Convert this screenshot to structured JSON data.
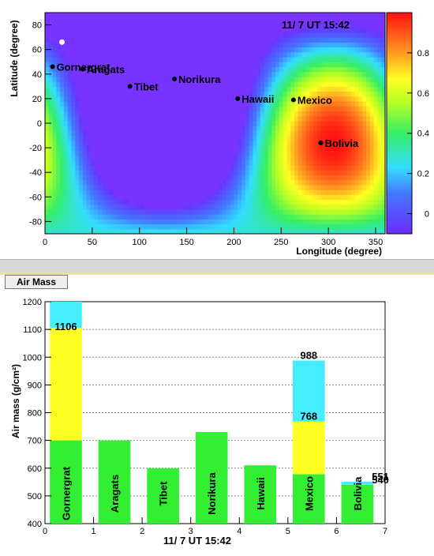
{
  "tab_label": "Air Mass",
  "chart_data": [
    {
      "type": "heatmap",
      "timestamp": "11/ 7  UT 15:42",
      "xlabel": "Longitude (degree)",
      "ylabel": "Latitude (degree)",
      "xlim": [
        0,
        360
      ],
      "ylim": [
        -90,
        90
      ],
      "x_ticks": [
        0,
        50,
        100,
        150,
        200,
        250,
        300,
        350
      ],
      "y_ticks": [
        -80,
        -60,
        -40,
        -20,
        0,
        20,
        40,
        60,
        80
      ],
      "colorbar_ticks": [
        0,
        0.2,
        0.4,
        0.6,
        0.8
      ],
      "colorbar_range": [
        -0.1,
        1.0
      ],
      "sun_marker": {
        "lon": 18,
        "lat": 66
      },
      "sites": [
        {
          "name": "Gornergrat",
          "lon": 8,
          "lat": 46
        },
        {
          "name": "Aragats",
          "lon": 40,
          "lat": 44
        },
        {
          "name": "Tibet",
          "lon": 90,
          "lat": 30
        },
        {
          "name": "Norikura",
          "lon": 137,
          "lat": 36
        },
        {
          "name": "Hawaii",
          "lon": 204,
          "lat": 20
        },
        {
          "name": "Mexico",
          "lon": 263,
          "lat": 19
        },
        {
          "name": "Bolivia",
          "lon": 292,
          "lat": -16
        }
      ]
    },
    {
      "type": "bar",
      "xlabel": "11/ 7  UT 15:42",
      "ylabel": "Air mass (g/cm²)",
      "ylim": [
        400,
        1200
      ],
      "xlim": [
        0,
        7
      ],
      "x_ticks": [
        0,
        1,
        2,
        3,
        4,
        5,
        6,
        7
      ],
      "y_ticks": [
        400,
        500,
        600,
        700,
        800,
        900,
        1000,
        1100,
        1200
      ],
      "bars": [
        {
          "name": "Gornergrat",
          "base": 700,
          "yellow_top": 1106,
          "cyan_top": 1200,
          "label": "1106"
        },
        {
          "name": "Aragats",
          "base": 700
        },
        {
          "name": "Tibet",
          "base": 600
        },
        {
          "name": "Norikura",
          "base": 730
        },
        {
          "name": "Hawaii",
          "base": 610
        },
        {
          "name": "Mexico",
          "base": 578,
          "yellow_top": 768,
          "cyan_top": 988,
          "label": "988",
          "label2": "768"
        },
        {
          "name": "Bolivia",
          "base": 540,
          "cyan_top": 551,
          "label": "551",
          "label2": "540"
        }
      ]
    }
  ],
  "colors": {
    "green": "#33ee33",
    "yellow": "#ffff22",
    "cyan": "#44eeff",
    "background_map": "#7733ff"
  }
}
